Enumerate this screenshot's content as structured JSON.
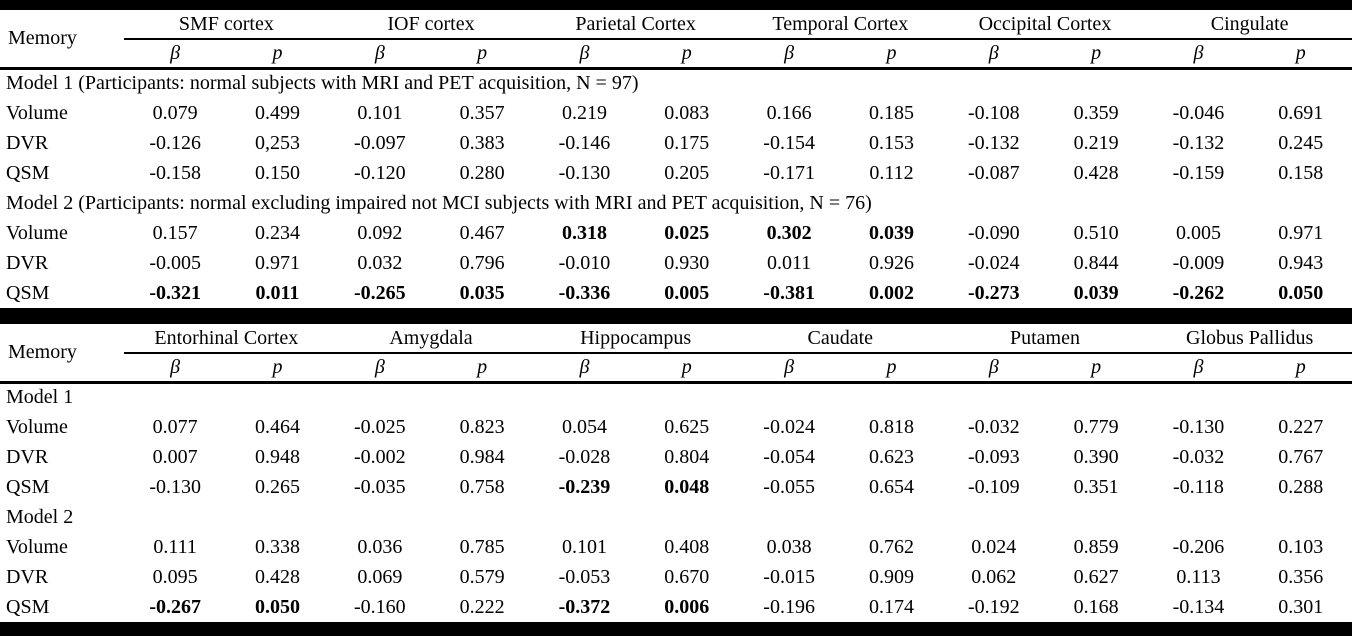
{
  "meta": {
    "row_header": "Memory",
    "beta_label": "β",
    "p_label": "p"
  },
  "tables": [
    {
      "regions": [
        "SMF cortex",
        "IOF cortex",
        "Parietal Cortex",
        "Temporal Cortex",
        "Occipital Cortex",
        "Cingulate"
      ],
      "sections": [
        {
          "title": "Model 1 (Participants: normal subjects with MRI and PET acquisition, N = 97)",
          "rows": [
            {
              "label": "Volume",
              "values": [
                "0.079",
                "0.499",
                "0.101",
                "0.357",
                "0.219",
                "0.083",
                "0.166",
                "0.185",
                "-0.108",
                "0.359",
                "-0.046",
                "0.691"
              ],
              "bold": []
            },
            {
              "label": "DVR",
              "values": [
                "-0.126",
                "0,253",
                "-0.097",
                "0.383",
                "-0.146",
                "0.175",
                "-0.154",
                "0.153",
                "-0.132",
                "0.219",
                "-0.132",
                "0.245"
              ],
              "bold": []
            },
            {
              "label": "QSM",
              "values": [
                "-0.158",
                "0.150",
                "-0.120",
                "0.280",
                "-0.130",
                "0.205",
                "-0.171",
                "0.112",
                "-0.087",
                "0.428",
                "-0.159",
                "0.158"
              ],
              "bold": []
            }
          ]
        },
        {
          "title": "Model 2 (Participants: normal excluding impaired not MCI subjects with MRI and PET acquisition, N = 76)",
          "rows": [
            {
              "label": "Volume",
              "values": [
                "0.157",
                "0.234",
                "0.092",
                "0.467",
                "0.318",
                "0.025",
                "0.302",
                "0.039",
                "-0.090",
                "0.510",
                "0.005",
                "0.971"
              ],
              "bold": [
                4,
                5,
                6,
                7
              ]
            },
            {
              "label": "DVR",
              "values": [
                "-0.005",
                "0.971",
                "0.032",
                "0.796",
                "-0.010",
                "0.930",
                "0.011",
                "0.926",
                "-0.024",
                "0.844",
                "-0.009",
                "0.943"
              ],
              "bold": []
            },
            {
              "label": "QSM",
              "values": [
                "-0.321",
                "0.011",
                "-0.265",
                "0.035",
                "-0.336",
                "0.005",
                "-0.381",
                "0.002",
                "-0.273",
                "0.039",
                "-0.262",
                "0.050"
              ],
              "bold": [
                0,
                1,
                2,
                3,
                4,
                5,
                6,
                7,
                8,
                9,
                10,
                11
              ]
            }
          ]
        }
      ]
    },
    {
      "regions": [
        "Entorhinal Cortex",
        "Amygdala",
        "Hippocampus",
        "Caudate",
        "Putamen",
        "Globus Pallidus"
      ],
      "sections": [
        {
          "title": "Model 1",
          "rows": [
            {
              "label": "Volume",
              "values": [
                "0.077",
                "0.464",
                "-0.025",
                "0.823",
                "0.054",
                "0.625",
                "-0.024",
                "0.818",
                "-0.032",
                "0.779",
                "-0.130",
                "0.227"
              ],
              "bold": []
            },
            {
              "label": "DVR",
              "values": [
                "0.007",
                "0.948",
                "-0.002",
                "0.984",
                "-0.028",
                "0.804",
                "-0.054",
                "0.623",
                "-0.093",
                "0.390",
                "-0.032",
                "0.767"
              ],
              "bold": []
            },
            {
              "label": "QSM",
              "values": [
                "-0.130",
                "0.265",
                "-0.035",
                "0.758",
                "-0.239",
                "0.048",
                "-0.055",
                "0.654",
                "-0.109",
                "0.351",
                "-0.118",
                "0.288"
              ],
              "bold": [
                4,
                5
              ]
            }
          ]
        },
        {
          "title": "Model 2",
          "rows": [
            {
              "label": "Volume",
              "values": [
                "0.111",
                "0.338",
                "0.036",
                "0.785",
                "0.101",
                "0.408",
                "0.038",
                "0.762",
                "0.024",
                "0.859",
                "-0.206",
                "0.103"
              ],
              "bold": []
            },
            {
              "label": "DVR",
              "values": [
                "0.095",
                "0.428",
                "0.069",
                "0.579",
                "-0.053",
                "0.670",
                "-0.015",
                "0.909",
                "0.062",
                "0.627",
                "0.113",
                "0.356"
              ],
              "bold": []
            },
            {
              "label": "QSM",
              "values": [
                "-0.267",
                "0.050",
                "-0.160",
                "0.222",
                "-0.372",
                "0.006",
                "-0.196",
                "0.174",
                "-0.192",
                "0.168",
                "-0.134",
                "0.301"
              ],
              "bold": [
                0,
                1,
                4,
                5
              ]
            }
          ]
        }
      ]
    }
  ]
}
